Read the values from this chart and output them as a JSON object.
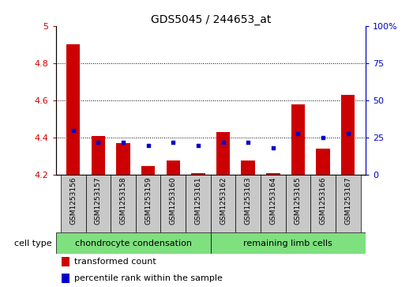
{
  "title": "GDS5045 / 244653_at",
  "samples": [
    "GSM1253156",
    "GSM1253157",
    "GSM1253158",
    "GSM1253159",
    "GSM1253160",
    "GSM1253161",
    "GSM1253162",
    "GSM1253163",
    "GSM1253164",
    "GSM1253165",
    "GSM1253166",
    "GSM1253167"
  ],
  "transformed_count": [
    4.9,
    4.41,
    4.37,
    4.25,
    4.28,
    4.21,
    4.43,
    4.28,
    4.21,
    4.58,
    4.34,
    4.63
  ],
  "percentile_rank": [
    30,
    22,
    22,
    20,
    22,
    20,
    22,
    22,
    18,
    28,
    25,
    28
  ],
  "ylim_left": [
    4.2,
    5.0
  ],
  "ylim_right": [
    0,
    100
  ],
  "yticks_left": [
    4.2,
    4.4,
    4.6,
    4.8,
    5.0
  ],
  "ytick_labels_left": [
    "4.2",
    "4.4",
    "4.6",
    "4.8",
    "5"
  ],
  "yticks_right": [
    0,
    25,
    50,
    75,
    100
  ],
  "ytick_labels_right": [
    "0",
    "25",
    "50",
    "75",
    "100%"
  ],
  "bar_color": "#cc0000",
  "dot_color": "#0000cc",
  "bar_width": 0.55,
  "hgrid_vals": [
    4.4,
    4.6,
    4.8
  ],
  "group1_label": "chondrocyte condensation",
  "group1_samples": [
    0,
    5
  ],
  "group2_label": "remaining limb cells",
  "group2_samples": [
    6,
    11
  ],
  "group_color": "#7EE07E",
  "sample_box_color": "#c8c8c8",
  "cell_type_label": "cell type",
  "legend_red_label": "transformed count",
  "legend_blue_label": "percentile rank within the sample",
  "title_fontsize": 10,
  "tick_fontsize": 8,
  "sample_fontsize": 6.5,
  "legend_fontsize": 8
}
